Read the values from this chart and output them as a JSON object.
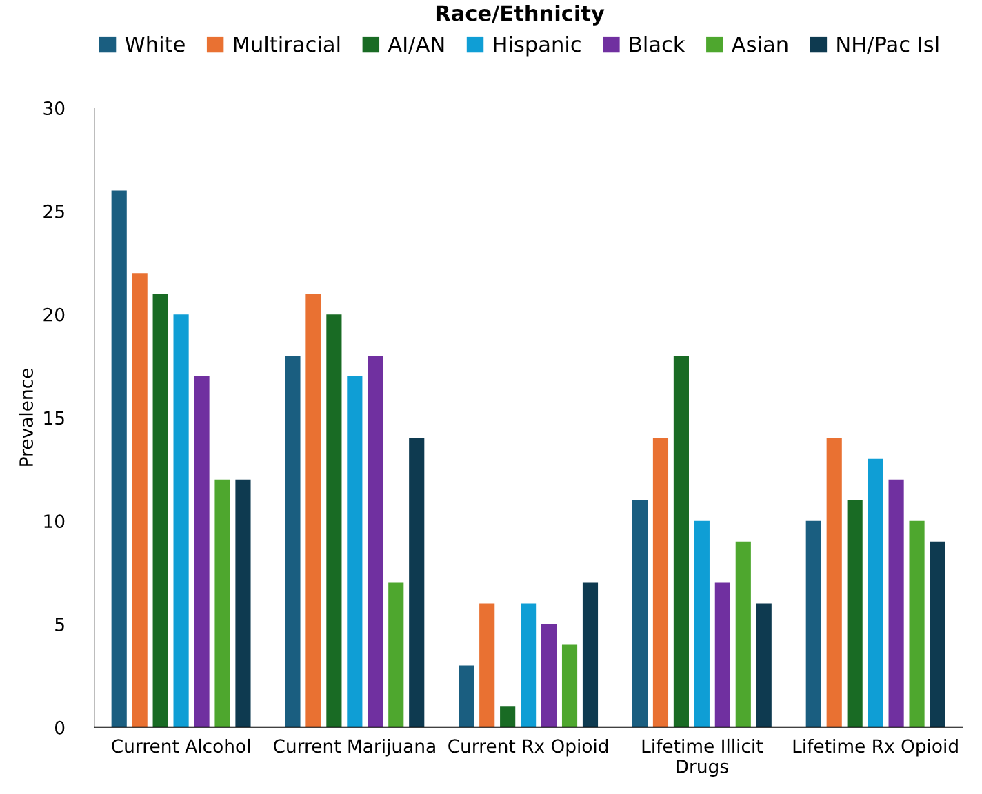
{
  "chart_data": {
    "type": "bar",
    "ylabel": "Prevalence",
    "legend_title": "Race/Ethnicity",
    "categories": [
      "Current Alcohol",
      "Current Marijuana",
      "Current Rx Opioid",
      "Lifetime Illicit\nDrugs",
      "Lifetime Rx Opioid"
    ],
    "series": [
      {
        "name": "White",
        "color": "#1a5e80",
        "values": [
          26,
          18,
          3,
          11,
          10
        ]
      },
      {
        "name": "Multiracial",
        "color": "#e97132",
        "values": [
          22,
          21,
          6,
          14,
          14
        ]
      },
      {
        "name": "AI/AN",
        "color": "#196b24",
        "values": [
          21,
          20,
          1,
          18,
          11
        ]
      },
      {
        "name": "Hispanic",
        "color": "#0f9ed5",
        "values": [
          20,
          17,
          6,
          10,
          13
        ]
      },
      {
        "name": "Black",
        "color": "#7030a0",
        "values": [
          17,
          18,
          5,
          7,
          12
        ]
      },
      {
        "name": "Asian",
        "color": "#4ea72e",
        "values": [
          12,
          7,
          4,
          9,
          10
        ]
      },
      {
        "name": "NH/Pac Isl",
        "color": "#0e3a50",
        "values": [
          12,
          14,
          7,
          6,
          9
        ]
      }
    ],
    "ylim": [
      0,
      30
    ],
    "yticks": [
      0,
      5,
      10,
      15,
      20,
      25,
      30
    ],
    "grid": false,
    "legend": "top"
  }
}
